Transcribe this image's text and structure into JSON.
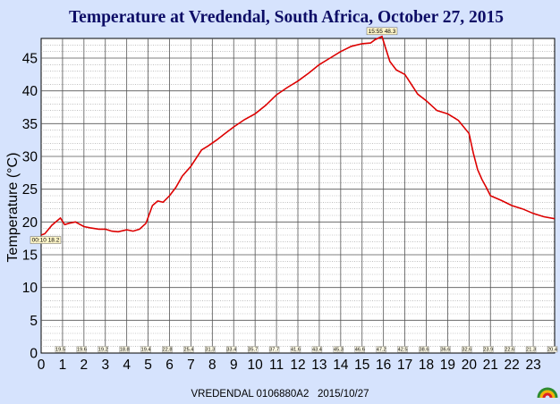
{
  "chart_data": {
    "type": "line",
    "title": "Temperature at Vredendal, South Africa, October 27, 2015",
    "ylabel": "Temperature (°C)",
    "xlabel": "",
    "xlim": [
      0,
      24
    ],
    "ylim": [
      0,
      48
    ],
    "x_ticks": [
      0,
      1,
      2,
      3,
      4,
      5,
      6,
      7,
      8,
      9,
      10,
      11,
      12,
      13,
      14,
      15,
      16,
      17,
      18,
      19,
      20,
      21,
      22,
      23
    ],
    "y_ticks": [
      0,
      5,
      10,
      15,
      20,
      25,
      30,
      35,
      40,
      45
    ],
    "grid": true,
    "footer": "VREDENDAL 0106880A2   2015/10/27",
    "line_color": "#dd0000",
    "series": [
      {
        "x": [
          0,
          0.17,
          0.5,
          0.9,
          1.1,
          1.3,
          1.6,
          2.0,
          2.3,
          2.7,
          3.0,
          3.3,
          3.6,
          4.0,
          4.3,
          4.6,
          4.9,
          5.2,
          5.45,
          5.7,
          6.0,
          6.3,
          6.6,
          7.0,
          7.5,
          7.8,
          8.2,
          8.6,
          9.0,
          9.5,
          10.0,
          10.5,
          11.0,
          11.5,
          12.0,
          12.5,
          13.0,
          13.5,
          14.0,
          14.5,
          15.0,
          15.4,
          15.6,
          15.93,
          16.1,
          16.3,
          16.6,
          17.0,
          17.3,
          17.6,
          18.0,
          18.5,
          19.0,
          19.5,
          20.0,
          20.2,
          20.4,
          20.6,
          20.8,
          21.0,
          21.5,
          22.0,
          22.5,
          23.0,
          23.5,
          24.0
        ],
        "y": [
          18.0,
          18.2,
          19.5,
          20.6,
          19.6,
          19.8,
          20.0,
          19.3,
          19.1,
          18.9,
          18.9,
          18.6,
          18.5,
          18.8,
          18.6,
          18.9,
          19.8,
          22.5,
          23.2,
          23.0,
          24.0,
          25.3,
          27.0,
          28.5,
          31.0,
          31.6,
          32.5,
          33.5,
          34.5,
          35.6,
          36.5,
          37.8,
          39.4,
          40.5,
          41.5,
          42.7,
          44.0,
          45.0,
          46.0,
          46.8,
          47.2,
          47.3,
          47.8,
          48.3,
          46.5,
          44.5,
          43.2,
          42.5,
          41.0,
          39.5,
          38.5,
          37.0,
          36.5,
          35.5,
          33.5,
          30.5,
          28.0,
          26.5,
          25.3,
          24.0,
          23.3,
          22.5,
          22.0,
          21.3,
          20.8,
          20.5
        ]
      }
    ],
    "annotations": [
      {
        "x": 0.17,
        "y": 18.2,
        "label": "00:10 18.2",
        "position": "below"
      },
      {
        "x": 15.93,
        "y": 48.3,
        "label": "15:55 48.3",
        "position": "above"
      }
    ],
    "hourly_labels": [
      "19.5",
      "19.6",
      "19.2",
      "18.8",
      "19.4",
      "22.8",
      "25.4",
      "31.3",
      "33.4",
      "35.7",
      "37.7",
      "41.6",
      "43.4",
      "45.3",
      "46.6",
      "47.2",
      "42.5",
      "38.6",
      "36.6",
      "32.6",
      "23.9",
      "22.6",
      "21.3",
      "20.4"
    ]
  },
  "logo": {
    "name": "sunburst-logo-icon"
  }
}
